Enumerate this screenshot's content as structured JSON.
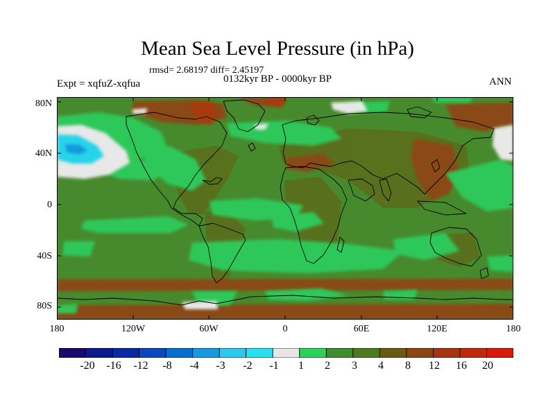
{
  "title": "Mean Sea Level Pressure (in hPa)",
  "stats": "rmsd= 2.68197 diff= 2.45197",
  "period": "0132kyr BP - 0000kyr BP",
  "experiment": "Expt = xqfuZ-xqfua",
  "season": "ANN",
  "axes": {
    "y_ticks": [
      "80N",
      "40N",
      "0",
      "40S",
      "80S"
    ],
    "x_ticks": [
      "180",
      "120W",
      "60W",
      "0",
      "60E",
      "120E",
      "180"
    ]
  },
  "colorbar": {
    "labels": [
      "-20",
      "-16",
      "-12",
      "-8",
      "-4",
      "-3",
      "-2",
      "-1",
      "1",
      "2",
      "3",
      "4",
      "8",
      "12",
      "16",
      "20"
    ],
    "colors": [
      "#1a0a6b",
      "#0d1a8c",
      "#0a2aa5",
      "#0a48c0",
      "#0a6ed0",
      "#1898df",
      "#2ec8ec",
      "#28e0ee",
      "#e6e6e6",
      "#2ed15a",
      "#3c8e2e",
      "#507a1e",
      "#6b5a14",
      "#8c4412",
      "#a53510",
      "#bf2a0d",
      "#d81a0a"
    ]
  },
  "palette": {
    "ocean": "#478a2d",
    "land": "#5a6e1c",
    "green_light": "#2ec85a",
    "white": "#e8e8e8",
    "cyan": "#28d4ea",
    "brown": "#8a4a12",
    "red_brown": "#a83a10"
  }
}
